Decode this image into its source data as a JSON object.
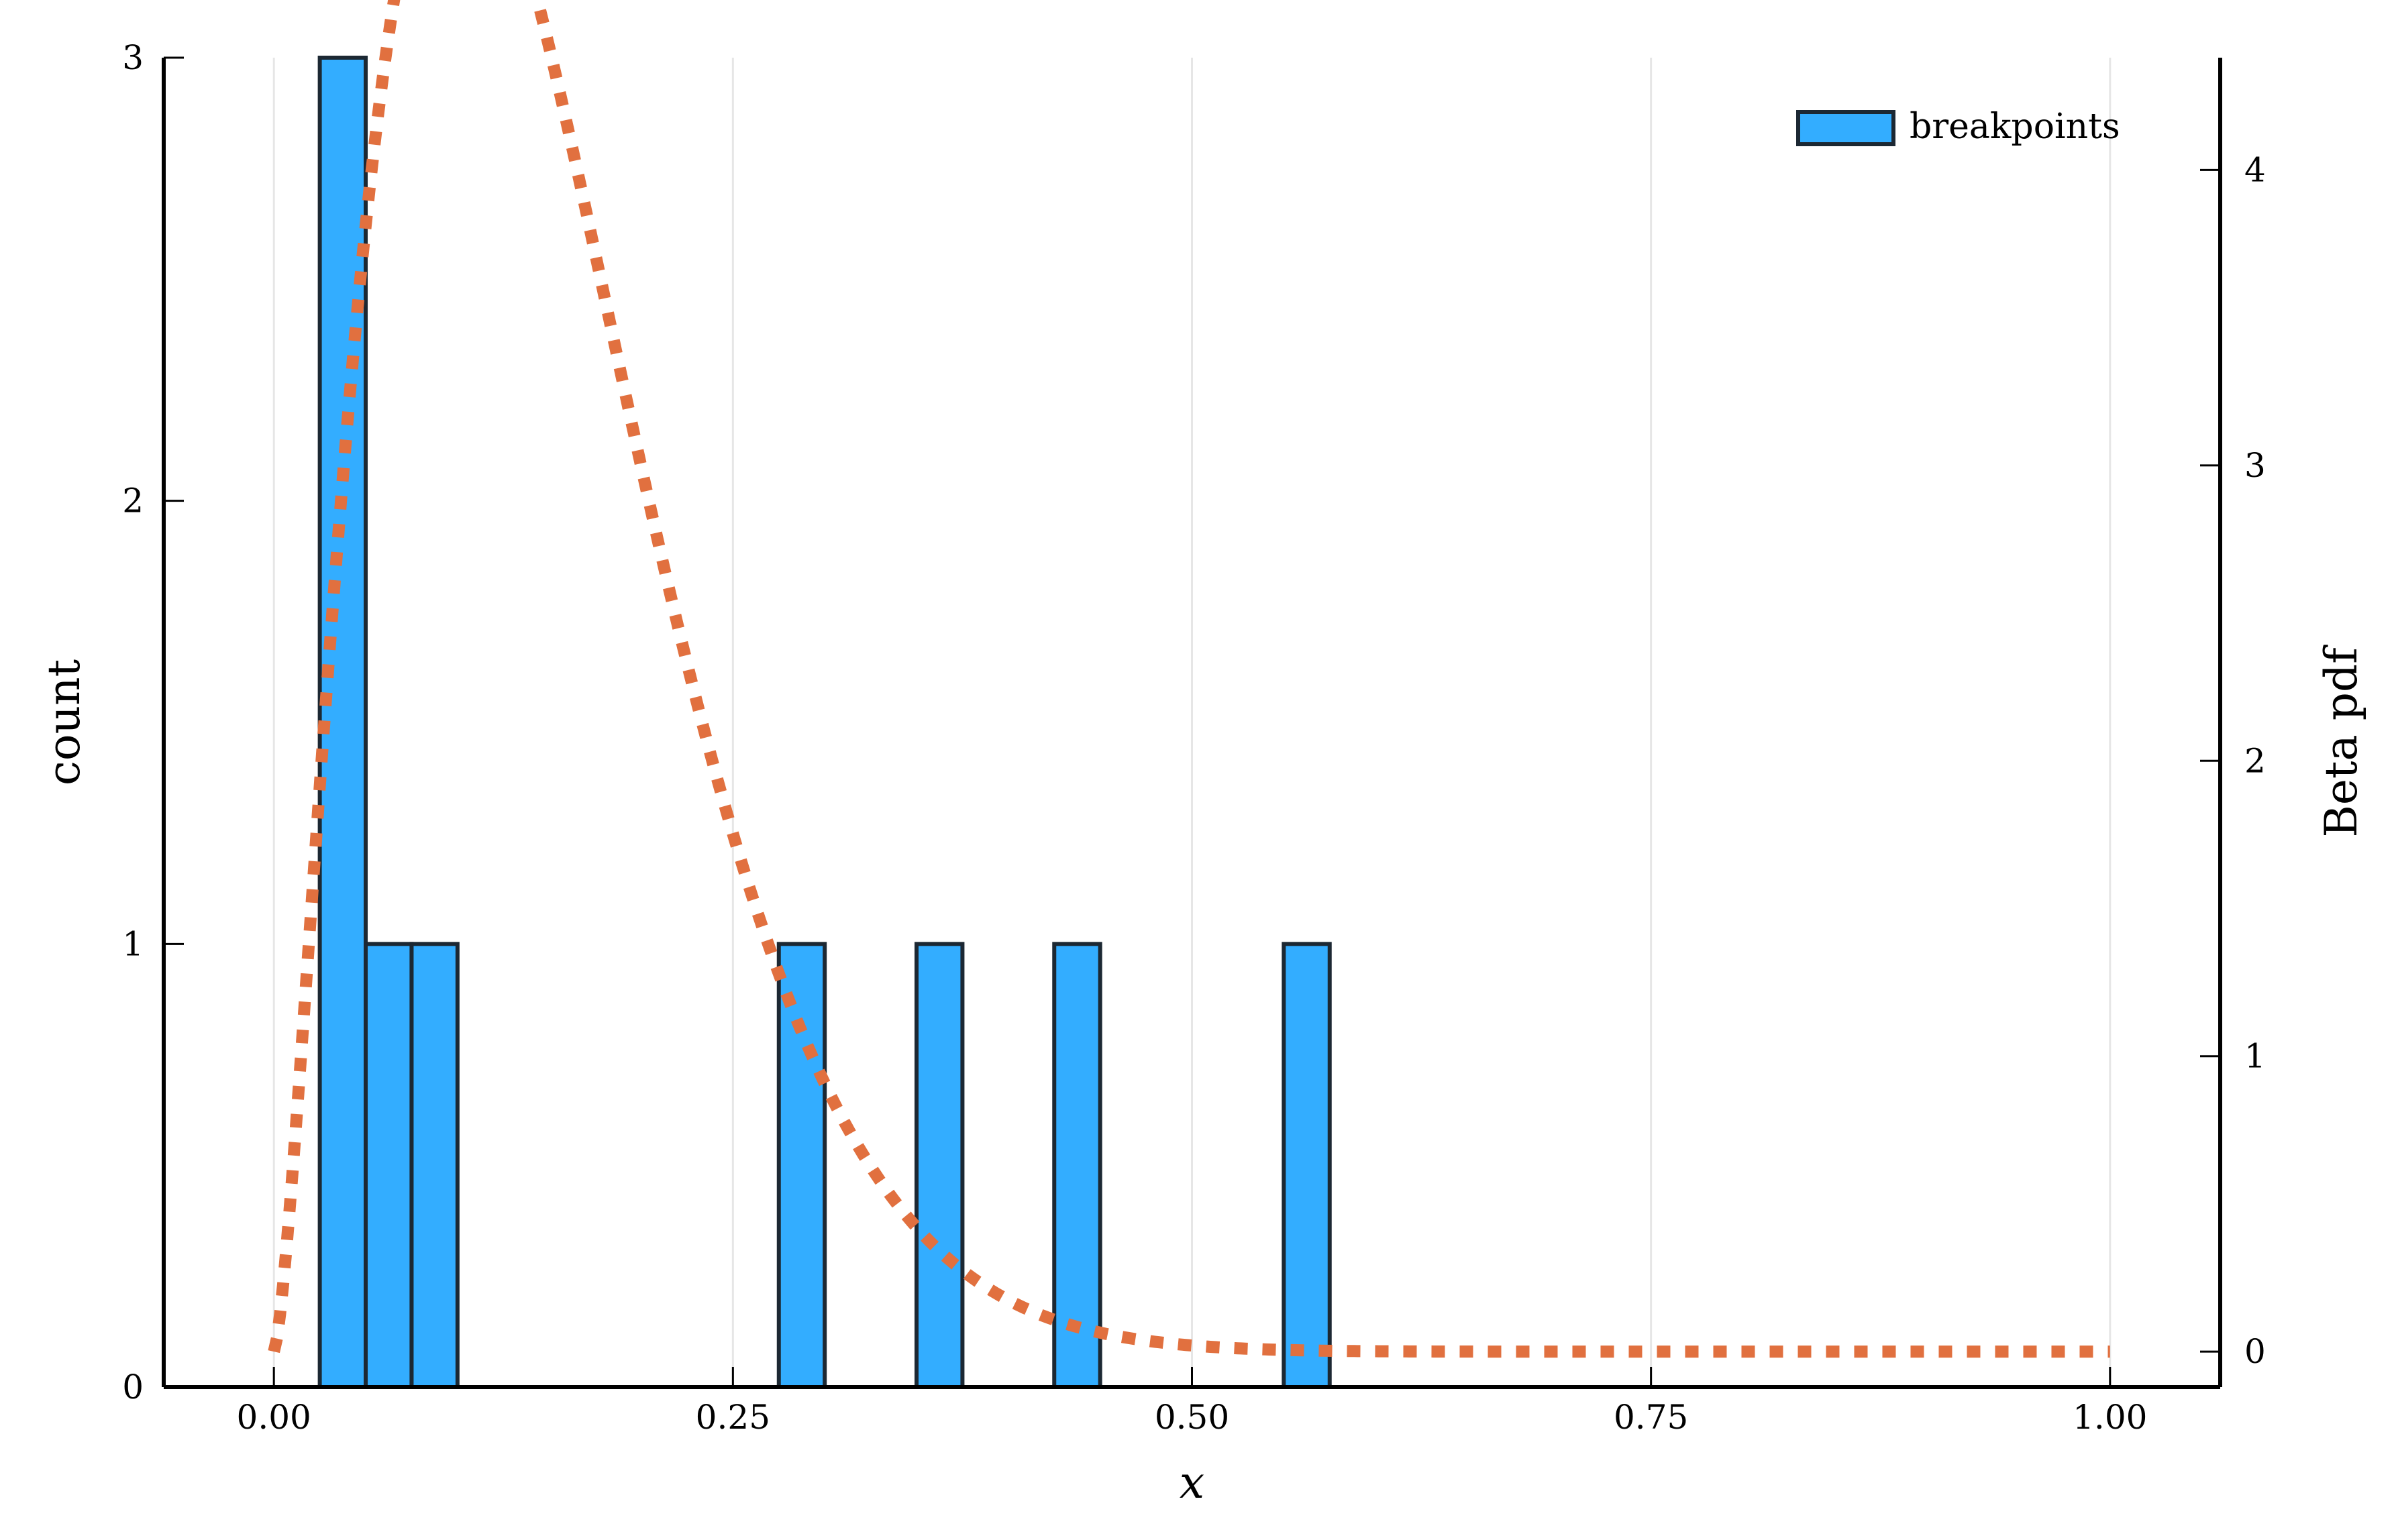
{
  "chart_data": {
    "type": "bar",
    "title": "",
    "xlabel": "x",
    "ylabel": "count",
    "y2label": "Beta pdf",
    "xlim": [
      -0.06,
      1.06
    ],
    "ylim": [
      0,
      3
    ],
    "y2lim": [
      -0.12,
      4.38
    ],
    "xticks": [
      0.0,
      0.25,
      0.5,
      0.75,
      1.0
    ],
    "xtick_labels": [
      "0.00",
      "0.25",
      "0.50",
      "0.75",
      "1.00"
    ],
    "yticks": [
      0,
      1,
      2,
      3
    ],
    "ytick_labels": [
      "0",
      "1",
      "2",
      "3"
    ],
    "y2ticks": [
      0,
      1,
      2,
      3,
      4
    ],
    "y2tick_labels": [
      "0",
      "1",
      "2",
      "3",
      "4"
    ],
    "grid": "vertical",
    "legend": {
      "position": "top-right",
      "entries": [
        "breakpoints"
      ]
    },
    "histogram": {
      "name": "breakpoints",
      "bins": [
        {
          "x0": 0.025,
          "x1": 0.05,
          "count": 3
        },
        {
          "x0": 0.05,
          "x1": 0.075,
          "count": 1
        },
        {
          "x0": 0.075,
          "x1": 0.1,
          "count": 1
        },
        {
          "x0": 0.275,
          "x1": 0.3,
          "count": 1
        },
        {
          "x0": 0.35,
          "x1": 0.375,
          "count": 1
        },
        {
          "x0": 0.425,
          "x1": 0.45,
          "count": 1
        },
        {
          "x0": 0.55,
          "x1": 0.575,
          "count": 1
        }
      ]
    },
    "pdf_curve": {
      "distribution": "Beta",
      "alpha": 2.5,
      "beta": 14.5,
      "x_range": [
        0,
        1
      ],
      "axis": "right"
    },
    "colors": {
      "bar_fill": "#33adff",
      "bar_stroke": "#1c2833",
      "curve": "#e1703f",
      "grid": "#e6e6e6",
      "axis": "#000000"
    }
  }
}
